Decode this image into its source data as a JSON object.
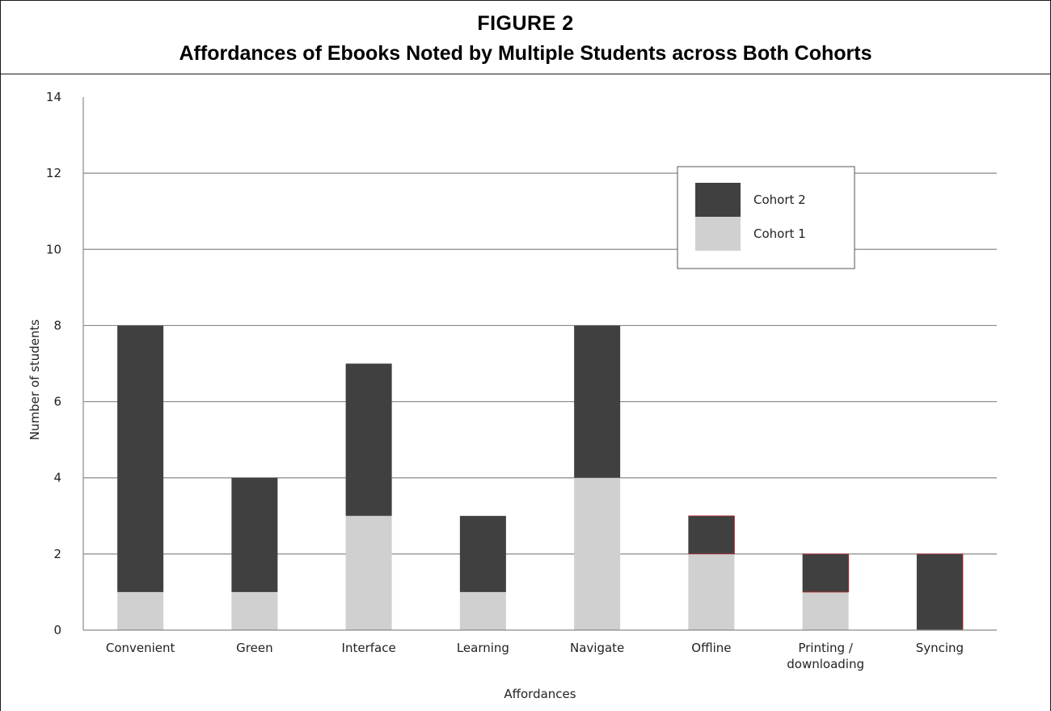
{
  "figure": {
    "label": "FIGURE 2",
    "title": "Affordances of Ebooks Noted by Multiple Students across Both Cohorts"
  },
  "chart_data": {
    "type": "bar",
    "stacked": true,
    "categories": [
      "Convenient",
      "Green",
      "Interface",
      "Learning",
      "Navigate",
      "Offline",
      "Printing / downloading",
      "Syncing"
    ],
    "category_lines": [
      [
        "Convenient"
      ],
      [
        "Green"
      ],
      [
        "Interface"
      ],
      [
        "Learning"
      ],
      [
        "Navigate"
      ],
      [
        "Offline"
      ],
      [
        "Printing /",
        "downloading"
      ],
      [
        "Syncing"
      ]
    ],
    "series": [
      {
        "name": "Cohort 1",
        "values": [
          1,
          1,
          3,
          1,
          4,
          2,
          1,
          0
        ],
        "color": "#d0d0d0"
      },
      {
        "name": "Cohort 2",
        "values": [
          7,
          3,
          4,
          2,
          4,
          1,
          1,
          2
        ],
        "color": "#404040"
      }
    ],
    "xlabel": "Affordances",
    "ylabel": "Number of students",
    "ylim": [
      0,
      14
    ],
    "yticks": [
      0,
      2,
      4,
      6,
      8,
      10,
      12,
      14
    ],
    "grid": true,
    "legend": {
      "position": "top-right",
      "order": [
        "Cohort 2",
        "Cohort 1"
      ]
    },
    "colors": {
      "grid": "#8a8a8a",
      "axis": "#8a8a8a",
      "edge_accent": "#c0262d"
    }
  }
}
